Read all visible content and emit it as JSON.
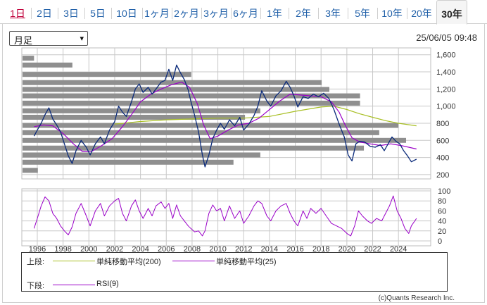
{
  "tabs": [
    {
      "label": "1日",
      "state": "first"
    },
    {
      "label": "2日"
    },
    {
      "label": "3日"
    },
    {
      "label": "5日"
    },
    {
      "label": "10日"
    },
    {
      "label": "1ヶ月"
    },
    {
      "label": "2ヶ月"
    },
    {
      "label": "3ヶ月"
    },
    {
      "label": "6ヶ月"
    },
    {
      "label": "1年"
    },
    {
      "label": "2年"
    },
    {
      "label": "3年"
    },
    {
      "label": "5年"
    },
    {
      "label": "10年"
    },
    {
      "label": "20年"
    },
    {
      "label": "30年",
      "state": "active"
    }
  ],
  "period_select": {
    "value": "月足"
  },
  "timestamp": "25/06/05 09:48",
  "chart_data": {
    "type": "line",
    "upper": {
      "y_ticks": [
        200,
        400,
        600,
        800,
        1000,
        1200,
        1400,
        1600
      ],
      "ylim": [
        150,
        1680
      ],
      "price_series": [
        [
          1995.75,
          650
        ],
        [
          1996.0,
          720
        ],
        [
          1996.3,
          800
        ],
        [
          1996.6,
          900
        ],
        [
          1996.9,
          980
        ],
        [
          1997.2,
          850
        ],
        [
          1997.5,
          780
        ],
        [
          1997.8,
          700
        ],
        [
          1998.1,
          560
        ],
        [
          1998.4,
          420
        ],
        [
          1998.7,
          330
        ],
        [
          1999.0,
          480
        ],
        [
          1999.4,
          600
        ],
        [
          1999.8,
          520
        ],
        [
          2000.1,
          430
        ],
        [
          2000.5,
          560
        ],
        [
          2000.9,
          640
        ],
        [
          2001.2,
          560
        ],
        [
          2001.6,
          720
        ],
        [
          2002.0,
          820
        ],
        [
          2002.3,
          1000
        ],
        [
          2002.6,
          930
        ],
        [
          2002.9,
          880
        ],
        [
          2003.3,
          1050
        ],
        [
          2003.6,
          1200
        ],
        [
          2003.9,
          1260
        ],
        [
          2004.2,
          1160
        ],
        [
          2004.6,
          1220
        ],
        [
          2004.9,
          1140
        ],
        [
          2005.2,
          1200
        ],
        [
          2005.6,
          1280
        ],
        [
          2005.9,
          1300
        ],
        [
          2006.2,
          1430
        ],
        [
          2006.5,
          1300
        ],
        [
          2006.8,
          1480
        ],
        [
          2007.1,
          1390
        ],
        [
          2007.4,
          1310
        ],
        [
          2007.7,
          1190
        ],
        [
          2007.9,
          1060
        ],
        [
          2008.2,
          890
        ],
        [
          2008.5,
          700
        ],
        [
          2008.8,
          430
        ],
        [
          2009.0,
          290
        ],
        [
          2009.3,
          430
        ],
        [
          2009.6,
          620
        ],
        [
          2009.9,
          720
        ],
        [
          2010.2,
          800
        ],
        [
          2010.5,
          730
        ],
        [
          2010.9,
          840
        ],
        [
          2011.3,
          770
        ],
        [
          2011.7,
          870
        ],
        [
          2012.0,
          720
        ],
        [
          2012.4,
          790
        ],
        [
          2012.8,
          890
        ],
        [
          2013.1,
          1000
        ],
        [
          2013.4,
          1180
        ],
        [
          2013.8,
          1060
        ],
        [
          2014.1,
          1000
        ],
        [
          2014.5,
          1120
        ],
        [
          2014.9,
          1180
        ],
        [
          2015.3,
          1290
        ],
        [
          2015.6,
          1220
        ],
        [
          2015.9,
          1120
        ],
        [
          2016.2,
          990
        ],
        [
          2016.6,
          1110
        ],
        [
          2017.0,
          1090
        ],
        [
          2017.4,
          1140
        ],
        [
          2017.8,
          1110
        ],
        [
          2018.2,
          1150
        ],
        [
          2018.6,
          1090
        ],
        [
          2019.0,
          960
        ],
        [
          2019.4,
          790
        ],
        [
          2019.8,
          640
        ],
        [
          2020.1,
          430
        ],
        [
          2020.4,
          360
        ],
        [
          2020.7,
          560
        ],
        [
          2021.0,
          590
        ],
        [
          2021.4,
          580
        ],
        [
          2021.8,
          530
        ],
        [
          2022.2,
          520
        ],
        [
          2022.6,
          550
        ],
        [
          2022.9,
          480
        ],
        [
          2023.2,
          560
        ],
        [
          2023.5,
          640
        ],
        [
          2023.8,
          590
        ],
        [
          2024.1,
          560
        ],
        [
          2024.4,
          480
        ],
        [
          2024.7,
          420
        ],
        [
          2025.0,
          350
        ],
        [
          2025.4,
          380
        ]
      ],
      "ma200_series": [
        [
          2002.0,
          790
        ],
        [
          2004.0,
          820
        ],
        [
          2006.0,
          840
        ],
        [
          2008.0,
          850
        ],
        [
          2010.0,
          860
        ],
        [
          2012.0,
          860
        ],
        [
          2014.0,
          880
        ],
        [
          2016.0,
          940
        ],
        [
          2018.0,
          990
        ],
        [
          2019.0,
          1000
        ],
        [
          2020.0,
          960
        ],
        [
          2021.0,
          910
        ],
        [
          2022.0,
          870
        ],
        [
          2023.0,
          830
        ],
        [
          2024.0,
          800
        ],
        [
          2025.4,
          770
        ]
      ],
      "ma25_series": [
        [
          1995.75,
          760
        ],
        [
          1996.5,
          780
        ],
        [
          1997.2,
          770
        ],
        [
          1998.0,
          680
        ],
        [
          1998.8,
          560
        ],
        [
          1999.5,
          470
        ],
        [
          2000.2,
          470
        ],
        [
          2001.0,
          540
        ],
        [
          2001.8,
          620
        ],
        [
          2002.6,
          760
        ],
        [
          2003.3,
          900
        ],
        [
          2004.0,
          1050
        ],
        [
          2004.8,
          1140
        ],
        [
          2005.6,
          1200
        ],
        [
          2006.4,
          1250
        ],
        [
          2007.2,
          1280
        ],
        [
          2007.8,
          1220
        ],
        [
          2008.4,
          1030
        ],
        [
          2008.9,
          780
        ],
        [
          2009.4,
          620
        ],
        [
          2010.0,
          650
        ],
        [
          2010.8,
          720
        ],
        [
          2011.6,
          780
        ],
        [
          2012.4,
          800
        ],
        [
          2013.2,
          860
        ],
        [
          2014.0,
          960
        ],
        [
          2014.8,
          1060
        ],
        [
          2015.6,
          1140
        ],
        [
          2016.4,
          1130
        ],
        [
          2017.2,
          1120
        ],
        [
          2018.0,
          1110
        ],
        [
          2018.8,
          1050
        ],
        [
          2019.4,
          930
        ],
        [
          2019.9,
          770
        ],
        [
          2020.4,
          630
        ],
        [
          2021.0,
          580
        ],
        [
          2021.8,
          560
        ],
        [
          2022.6,
          540
        ],
        [
          2023.4,
          560
        ],
        [
          2024.2,
          540
        ],
        [
          2025.4,
          500
        ]
      ],
      "volume_bars": [
        {
          "y": 1560,
          "length": 0.03
        },
        {
          "y": 1480,
          "length": 0.13
        },
        {
          "y": 1370,
          "length": 0.44
        },
        {
          "y": 1275,
          "length": 0.78
        },
        {
          "y": 1195,
          "length": 0.8
        },
        {
          "y": 1120,
          "length": 0.88
        },
        {
          "y": 1035,
          "length": 0.88
        },
        {
          "y": 945,
          "length": 0.62
        },
        {
          "y": 870,
          "length": 0.58
        },
        {
          "y": 775,
          "length": 0.98
        },
        {
          "y": 690,
          "length": 0.93
        },
        {
          "y": 600,
          "length": 1.0
        },
        {
          "y": 510,
          "length": 0.89
        },
        {
          "y": 430,
          "length": 0.62
        },
        {
          "y": 345,
          "length": 0.55
        },
        {
          "y": 250,
          "length": 0.04
        }
      ]
    },
    "lower": {
      "y_ticks": [
        0,
        20,
        40,
        60,
        80,
        100
      ],
      "ylim": [
        0,
        100
      ],
      "rsi_series": [
        [
          1995.75,
          25
        ],
        [
          1996.0,
          45
        ],
        [
          1996.3,
          70
        ],
        [
          1996.6,
          88
        ],
        [
          1996.9,
          80
        ],
        [
          1997.2,
          55
        ],
        [
          1997.5,
          45
        ],
        [
          1997.8,
          30
        ],
        [
          1998.1,
          20
        ],
        [
          1998.4,
          12
        ],
        [
          1998.7,
          28
        ],
        [
          1999.0,
          55
        ],
        [
          1999.4,
          75
        ],
        [
          1999.8,
          50
        ],
        [
          2000.1,
          30
        ],
        [
          2000.5,
          60
        ],
        [
          2000.9,
          75
        ],
        [
          2001.2,
          50
        ],
        [
          2001.6,
          70
        ],
        [
          2002.0,
          80
        ],
        [
          2002.3,
          85
        ],
        [
          2002.6,
          55
        ],
        [
          2002.9,
          40
        ],
        [
          2003.3,
          70
        ],
        [
          2003.6,
          82
        ],
        [
          2003.9,
          60
        ],
        [
          2004.2,
          45
        ],
        [
          2004.6,
          65
        ],
        [
          2004.9,
          50
        ],
        [
          2005.2,
          70
        ],
        [
          2005.6,
          78
        ],
        [
          2005.9,
          65
        ],
        [
          2006.2,
          75
        ],
        [
          2006.5,
          45
        ],
        [
          2006.8,
          72
        ],
        [
          2007.1,
          50
        ],
        [
          2007.4,
          40
        ],
        [
          2007.7,
          30
        ],
        [
          2007.9,
          25
        ],
        [
          2008.2,
          18
        ],
        [
          2008.5,
          20
        ],
        [
          2008.8,
          10
        ],
        [
          2009.0,
          20
        ],
        [
          2009.3,
          55
        ],
        [
          2009.6,
          72
        ],
        [
          2009.9,
          60
        ],
        [
          2010.2,
          65
        ],
        [
          2010.5,
          40
        ],
        [
          2010.9,
          70
        ],
        [
          2011.3,
          45
        ],
        [
          2011.7,
          60
        ],
        [
          2012.0,
          35
        ],
        [
          2012.4,
          50
        ],
        [
          2012.8,
          70
        ],
        [
          2013.1,
          80
        ],
        [
          2013.4,
          75
        ],
        [
          2013.8,
          50
        ],
        [
          2014.1,
          40
        ],
        [
          2014.5,
          60
        ],
        [
          2014.9,
          70
        ],
        [
          2015.3,
          75
        ],
        [
          2015.6,
          55
        ],
        [
          2015.9,
          40
        ],
        [
          2016.2,
          30
        ],
        [
          2016.6,
          60
        ],
        [
          2016.9,
          45
        ],
        [
          2017.2,
          65
        ],
        [
          2017.6,
          55
        ],
        [
          2018.0,
          65
        ],
        [
          2018.4,
          50
        ],
        [
          2018.8,
          35
        ],
        [
          2019.2,
          30
        ],
        [
          2019.6,
          25
        ],
        [
          2020.0,
          15
        ],
        [
          2020.3,
          10
        ],
        [
          2020.6,
          30
        ],
        [
          2020.9,
          60
        ],
        [
          2021.2,
          50
        ],
        [
          2021.6,
          40
        ],
        [
          2021.9,
          35
        ],
        [
          2022.3,
          45
        ],
        [
          2022.7,
          40
        ],
        [
          2023.0,
          55
        ],
        [
          2023.3,
          70
        ],
        [
          2023.6,
          90
        ],
        [
          2023.9,
          60
        ],
        [
          2024.2,
          45
        ],
        [
          2024.5,
          25
        ],
        [
          2024.8,
          15
        ],
        [
          2025.0,
          30
        ],
        [
          2025.4,
          45
        ]
      ]
    },
    "x_ticks": [
      1996,
      1998,
      2000,
      2002,
      2004,
      2006,
      2008,
      2010,
      2012,
      2014,
      2016,
      2018,
      2020,
      2022,
      2024
    ],
    "xlim": [
      1994.8,
      2026.5
    ],
    "colors": {
      "price": "#0a2a7a",
      "ma200": "#a8bf24",
      "ma25": "#9a00c8",
      "rsi": "#9a00c8",
      "volume": "#8f8f8f",
      "grid": "#c8c8c8"
    }
  },
  "legend": {
    "upper_label": "上段:",
    "lower_label": "下段:",
    "ma200_label": "単純移動平均(200)",
    "ma25_label": "単純移動平均(25)",
    "rsi_label": "RSI(9)"
  },
  "credit": "(c)Quants Research Inc."
}
